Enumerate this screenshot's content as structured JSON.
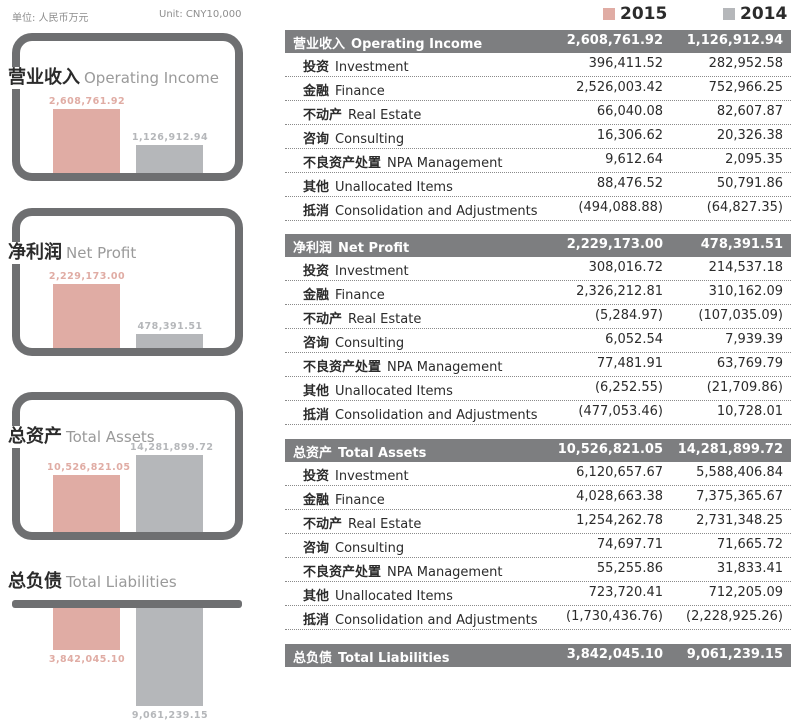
{
  "unit_zh": "单位: 人民币万元",
  "unit_en": "Unit: CNY10,000",
  "legend": [
    {
      "label": "2015",
      "color": "#e0aca4"
    },
    {
      "label": "2014",
      "color": "#b5b7ba"
    }
  ],
  "chart_data": [
    {
      "type": "bar",
      "title_zh": "营业收入",
      "title_en": "Operating Income",
      "categories": [
        "2015",
        "2014"
      ],
      "values": [
        2608761.92,
        1126912.94
      ],
      "labels": [
        "2,608,761.92",
        "1,126,912.94"
      ]
    },
    {
      "type": "bar",
      "title_zh": "净利润",
      "title_en": "Net Profit",
      "categories": [
        "2015",
        "2014"
      ],
      "values": [
        2229173.0,
        478391.51
      ],
      "labels": [
        "2,229,173.00",
        "478,391.51"
      ]
    },
    {
      "type": "bar",
      "title_zh": "总资产",
      "title_en": "Total Assets",
      "categories": [
        "2015",
        "2014"
      ],
      "values": [
        10526821.05,
        14281899.72
      ],
      "labels": [
        "10,526,821.05",
        "14,281,899.72"
      ]
    },
    {
      "type": "bar",
      "title_zh": "总负债",
      "title_en": "Total Liabilities",
      "categories": [
        "2015",
        "2014"
      ],
      "values": [
        3842045.1,
        9061239.15
      ],
      "labels": [
        "3,842,045.10",
        "9,061,239.15"
      ]
    }
  ],
  "table": {
    "sections": [
      {
        "head": {
          "zh": "营业收入",
          "en": "Operating Income",
          "v2015": "2,608,761.92",
          "v2014": "1,126,912.94"
        },
        "rows": [
          {
            "zh": "投资",
            "en": "Investment",
            "v2015": "396,411.52",
            "v2014": "282,952.58"
          },
          {
            "zh": "金融",
            "en": "Finance",
            "v2015": "2,526,003.42",
            "v2014": "752,966.25"
          },
          {
            "zh": "不动产",
            "en": "Real Estate",
            "v2015": "66,040.08",
            "v2014": "82,607.87"
          },
          {
            "zh": "咨询",
            "en": "Consulting",
            "v2015": "16,306.62",
            "v2014": "20,326.38"
          },
          {
            "zh": "不良资产处置",
            "en": "NPA Management",
            "v2015": "9,612.64",
            "v2014": "2,095.35"
          },
          {
            "zh": "其他",
            "en": "Unallocated Items",
            "v2015": "88,476.52",
            "v2014": "50,791.86"
          },
          {
            "zh": "抵消",
            "en": "Consolidation and Adjustments",
            "v2015": "(494,088.88)",
            "v2014": "(64,827.35)"
          }
        ]
      },
      {
        "head": {
          "zh": "净利润",
          "en": "Net Profit",
          "v2015": "2,229,173.00",
          "v2014": "478,391.51"
        },
        "rows": [
          {
            "zh": "投资",
            "en": "Investment",
            "v2015": "308,016.72",
            "v2014": "214,537.18"
          },
          {
            "zh": "金融",
            "en": "Finance",
            "v2015": "2,326,212.81",
            "v2014": "310,162.09"
          },
          {
            "zh": "不动产",
            "en": "Real Estate",
            "v2015": "(5,284.97)",
            "v2014": "(107,035.09)"
          },
          {
            "zh": "咨询",
            "en": "Consulting",
            "v2015": "6,052.54",
            "v2014": "7,939.39"
          },
          {
            "zh": "不良资产处置",
            "en": "NPA Management",
            "v2015": "77,481.91",
            "v2014": "63,769.79"
          },
          {
            "zh": "其他",
            "en": "Unallocated Items",
            "v2015": "(6,252.55)",
            "v2014": "(21,709.86)"
          },
          {
            "zh": "抵消",
            "en": "Consolidation and Adjustments",
            "v2015": "(477,053.46)",
            "v2014": "10,728.01"
          }
        ]
      },
      {
        "head": {
          "zh": "总资产",
          "en": "Total Assets",
          "v2015": "10,526,821.05",
          "v2014": "14,281,899.72"
        },
        "rows": [
          {
            "zh": "投资",
            "en": "Investment",
            "v2015": "6,120,657.67",
            "v2014": "5,588,406.84"
          },
          {
            "zh": "金融",
            "en": "Finance",
            "v2015": "4,028,663.38",
            "v2014": "7,375,365.67"
          },
          {
            "zh": "不动产",
            "en": "Real Estate",
            "v2015": "1,254,262.78",
            "v2014": "2,731,348.25"
          },
          {
            "zh": "咨询",
            "en": "Consulting",
            "v2015": "74,697.71",
            "v2014": "71,665.72"
          },
          {
            "zh": "不良资产处置",
            "en": "NPA Management",
            "v2015": "55,255.86",
            "v2014": "31,833.41"
          },
          {
            "zh": "其他",
            "en": "Unallocated Items",
            "v2015": "723,720.41",
            "v2014": "712,205.09"
          },
          {
            "zh": "抵消",
            "en": "Consolidation and Adjustments",
            "v2015": "(1,730,436.76)",
            "v2014": "(2,228,925.26)"
          }
        ]
      },
      {
        "head": {
          "zh": "总负债",
          "en": "Total Liabilities",
          "v2015": "3,842,045.10",
          "v2014": "9,061,239.15"
        },
        "rows": []
      }
    ]
  }
}
